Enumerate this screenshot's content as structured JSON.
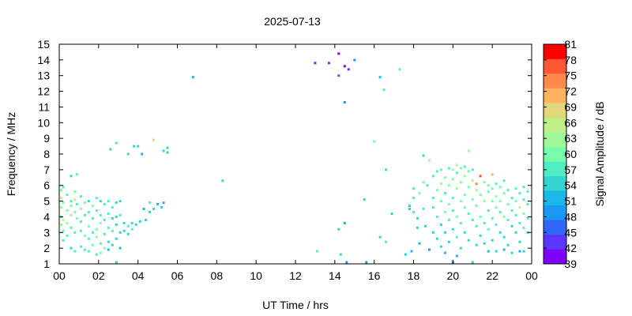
{
  "chart_data": {
    "type": "heatmap",
    "title": "2025-07-13",
    "xlabel": "UT Time / hrs",
    "ylabel": "Frequency / MHz",
    "xlim": [
      0,
      24
    ],
    "ylim": [
      1,
      15
    ],
    "x_tick_labels": [
      "00",
      "02",
      "04",
      "06",
      "08",
      "10",
      "12",
      "14",
      "16",
      "18",
      "20",
      "22",
      "00"
    ],
    "y_tick_labels": [
      "1",
      "2",
      "3",
      "4",
      "5",
      "6",
      "7",
      "8",
      "9",
      "10",
      "11",
      "12",
      "13",
      "14",
      "15"
    ],
    "grid": false,
    "colorbar": {
      "label": "Signal Amplitude / dB",
      "min": 39,
      "max": 81,
      "tick_labels": [
        "39",
        "42",
        "45",
        "48",
        "51",
        "54",
        "57",
        "60",
        "63",
        "66",
        "69",
        "72",
        "75",
        "78",
        "81"
      ],
      "colors": [
        "#8000ff",
        "#5a36fe",
        "#3265fa",
        "#1a96f3",
        "#1ab7e8",
        "#33d5d4",
        "#51edc5",
        "#78feaa",
        "#a0f898",
        "#c0ee89",
        "#e1d67a",
        "#ffb360",
        "#ff8a4a",
        "#ff5733",
        "#ff0000"
      ]
    },
    "points": [
      [
        0.1,
        5.7,
        60
      ],
      [
        0.1,
        5.2,
        65
      ],
      [
        0.1,
        4.6,
        62
      ],
      [
        0.1,
        4.0,
        58
      ],
      [
        0.1,
        3.5,
        63
      ],
      [
        0.2,
        5.9,
        57
      ],
      [
        0.2,
        4.9,
        61
      ],
      [
        0.2,
        3.8,
        66
      ],
      [
        0.2,
        3.1,
        59
      ],
      [
        0.2,
        2.5,
        56
      ],
      [
        0.4,
        5.4,
        58
      ],
      [
        0.4,
        4.4,
        60
      ],
      [
        0.4,
        3.6,
        62
      ],
      [
        0.4,
        2.8,
        57
      ],
      [
        0.6,
        6.6,
        55
      ],
      [
        0.6,
        5.0,
        56
      ],
      [
        0.6,
        4.7,
        61
      ],
      [
        0.6,
        4.1,
        64
      ],
      [
        0.6,
        3.3,
        57
      ],
      [
        0.6,
        2.0,
        55
      ],
      [
        0.8,
        5.6,
        59
      ],
      [
        0.8,
        5.1,
        66
      ],
      [
        0.8,
        4.3,
        61
      ],
      [
        0.8,
        3.0,
        58
      ],
      [
        0.8,
        1.8,
        57
      ],
      [
        0.9,
        6.7,
        56
      ],
      [
        0.9,
        4.8,
        57
      ],
      [
        0.9,
        3.9,
        60
      ],
      [
        1.1,
        5.3,
        58
      ],
      [
        1.1,
        4.5,
        62
      ],
      [
        1.1,
        3.7,
        56
      ],
      [
        1.1,
        3.1,
        58
      ],
      [
        1.1,
        2.1,
        57
      ],
      [
        1.3,
        4.9,
        60
      ],
      [
        1.3,
        4.1,
        57
      ],
      [
        1.3,
        2.8,
        59
      ],
      [
        1.3,
        1.9,
        56
      ],
      [
        1.5,
        5.0,
        55
      ],
      [
        1.5,
        4.3,
        58
      ],
      [
        1.5,
        3.4,
        60
      ],
      [
        1.5,
        2.6,
        57
      ],
      [
        1.5,
        1.8,
        58
      ],
      [
        1.7,
        4.7,
        62
      ],
      [
        1.7,
        3.9,
        57
      ],
      [
        1.7,
        3.0,
        58
      ],
      [
        1.7,
        2.2,
        60
      ],
      [
        1.9,
        5.2,
        56
      ],
      [
        1.9,
        4.4,
        58
      ],
      [
        1.9,
        3.2,
        59
      ],
      [
        1.9,
        2.7,
        64
      ],
      [
        1.9,
        1.6,
        57
      ],
      [
        2.1,
        5.0,
        55
      ],
      [
        2.1,
        4.1,
        57
      ],
      [
        2.1,
        3.6,
        59
      ],
      [
        2.1,
        2.3,
        58
      ],
      [
        2.1,
        1.7,
        60
      ],
      [
        2.3,
        4.8,
        56
      ],
      [
        2.3,
        3.8,
        58
      ],
      [
        2.3,
        2.9,
        57
      ],
      [
        2.3,
        2.0,
        59
      ],
      [
        2.5,
        5.0,
        56
      ],
      [
        2.5,
        4.2,
        58
      ],
      [
        2.5,
        3.3,
        56
      ],
      [
        2.5,
        2.4,
        55
      ],
      [
        2.5,
        1.9,
        52
      ],
      [
        2.6,
        8.3,
        55
      ],
      [
        2.7,
        4.6,
        57
      ],
      [
        2.7,
        3.9,
        55
      ],
      [
        2.7,
        3.1,
        57
      ],
      [
        2.7,
        2.2,
        54
      ],
      [
        2.9,
        8.7,
        57
      ],
      [
        2.9,
        4.9,
        55
      ],
      [
        2.9,
        4.0,
        55
      ],
      [
        2.9,
        3.5,
        55
      ],
      [
        2.9,
        2.6,
        53
      ],
      [
        2.9,
        1.1,
        54
      ],
      [
        3.1,
        5.0,
        54
      ],
      [
        3.1,
        4.1,
        56
      ],
      [
        3.1,
        3.0,
        53
      ],
      [
        3.1,
        2.0,
        52
      ],
      [
        3.3,
        3.6,
        55
      ],
      [
        3.3,
        3.1,
        54
      ],
      [
        3.5,
        3.4,
        56
      ],
      [
        3.5,
        2.9,
        54
      ],
      [
        3.5,
        8.0,
        53
      ],
      [
        3.7,
        3.6,
        55
      ],
      [
        3.7,
        3.2,
        57
      ],
      [
        3.8,
        8.5,
        54
      ],
      [
        3.9,
        3.5,
        55
      ],
      [
        4.0,
        8.5,
        53
      ],
      [
        4.1,
        3.7,
        55
      ],
      [
        4.2,
        8.0,
        52
      ],
      [
        4.3,
        4.5,
        51
      ],
      [
        4.4,
        3.8,
        55
      ],
      [
        4.6,
        4.9,
        56
      ],
      [
        4.6,
        4.3,
        53
      ],
      [
        4.8,
        4.5,
        55
      ],
      [
        4.8,
        8.9,
        68
      ],
      [
        5.0,
        4.8,
        52
      ],
      [
        5.2,
        4.6,
        53
      ],
      [
        5.3,
        8.2,
        54
      ],
      [
        5.5,
        8.4,
        55
      ],
      [
        5.5,
        8.1,
        53
      ],
      [
        5.3,
        4.9,
        52
      ],
      [
        6.8,
        12.9,
        52
      ],
      [
        8.3,
        6.3,
        54
      ],
      [
        13.0,
        13.8,
        42
      ],
      [
        13.1,
        1.8,
        57
      ],
      [
        13.7,
        13.8,
        43
      ],
      [
        14.2,
        14.4,
        40
      ],
      [
        14.2,
        3.2,
        53
      ],
      [
        14.2,
        13.0,
        47
      ],
      [
        14.3,
        1.6,
        54
      ],
      [
        14.5,
        13.6,
        41
      ],
      [
        14.5,
        11.3,
        50
      ],
      [
        14.5,
        3.6,
        52
      ],
      [
        14.6,
        1.1,
        50
      ],
      [
        14.7,
        13.4,
        44
      ],
      [
        15.0,
        14.0,
        48
      ],
      [
        15.5,
        5.1,
        54
      ],
      [
        15.6,
        1.1,
        50
      ],
      [
        16.0,
        8.8,
        61
      ],
      [
        16.3,
        12.9,
        52
      ],
      [
        16.3,
        2.7,
        55
      ],
      [
        16.5,
        12.1,
        57
      ],
      [
        16.6,
        7.0,
        55
      ],
      [
        16.6,
        2.4,
        57
      ],
      [
        16.9,
        4.2,
        53
      ],
      [
        17.3,
        13.4,
        58
      ],
      [
        17.6,
        1.6,
        53
      ],
      [
        17.9,
        1.8,
        52
      ],
      [
        17.8,
        4.7,
        54
      ],
      [
        17.8,
        4.5,
        55
      ],
      [
        18.0,
        5.8,
        56
      ],
      [
        18.0,
        5.2,
        58
      ],
      [
        18.0,
        4.3,
        57
      ],
      [
        18.2,
        3.9,
        55
      ],
      [
        18.2,
        3.3,
        53
      ],
      [
        18.3,
        5.5,
        59
      ],
      [
        18.3,
        2.3,
        52
      ],
      [
        18.5,
        6.2,
        60
      ],
      [
        18.5,
        4.5,
        57
      ],
      [
        18.5,
        7.9,
        53
      ],
      [
        18.6,
        3.4,
        54
      ],
      [
        18.7,
        6.0,
        58
      ],
      [
        18.8,
        7.6,
        64
      ],
      [
        18.8,
        1.9,
        50
      ],
      [
        19.0,
        6.6,
        56
      ],
      [
        19.0,
        5.2,
        57
      ],
      [
        19.0,
        4.6,
        56
      ],
      [
        19.0,
        3.0,
        53
      ],
      [
        19.2,
        6.9,
        58
      ],
      [
        19.2,
        5.7,
        59
      ],
      [
        19.2,
        4.0,
        58
      ],
      [
        19.2,
        2.6,
        54
      ],
      [
        19.4,
        7.0,
        59
      ],
      [
        19.4,
        6.1,
        62
      ],
      [
        19.4,
        5.0,
        61
      ],
      [
        19.4,
        3.5,
        55
      ],
      [
        19.4,
        2.1,
        53
      ],
      [
        19.6,
        6.5,
        60
      ],
      [
        19.6,
        5.5,
        58
      ],
      [
        19.6,
        4.3,
        60
      ],
      [
        19.6,
        3.0,
        54
      ],
      [
        19.6,
        1.7,
        52
      ],
      [
        19.8,
        7.1,
        58
      ],
      [
        19.8,
        6.0,
        61
      ],
      [
        19.8,
        4.8,
        59
      ],
      [
        19.8,
        3.8,
        56
      ],
      [
        19.8,
        2.4,
        53
      ],
      [
        20.0,
        7.0,
        62
      ],
      [
        20.0,
        6.4,
        60
      ],
      [
        20.0,
        5.2,
        57
      ],
      [
        20.0,
        4.4,
        58
      ],
      [
        20.0,
        3.2,
        54
      ],
      [
        20.0,
        1.1,
        50
      ],
      [
        20.2,
        7.3,
        63
      ],
      [
        20.2,
        6.8,
        58
      ],
      [
        20.2,
        5.8,
        62
      ],
      [
        20.2,
        4.0,
        60
      ],
      [
        20.2,
        2.7,
        56
      ],
      [
        20.2,
        1.5,
        52
      ],
      [
        20.4,
        7.1,
        60
      ],
      [
        20.4,
        6.2,
        59
      ],
      [
        20.4,
        5.0,
        61
      ],
      [
        20.4,
        3.6,
        57
      ],
      [
        20.4,
        2.0,
        53
      ],
      [
        20.6,
        7.2,
        57
      ],
      [
        20.6,
        6.6,
        63
      ],
      [
        20.6,
        5.4,
        60
      ],
      [
        20.6,
        4.6,
        59
      ],
      [
        20.6,
        3.0,
        55
      ],
      [
        20.8,
        8.2,
        62
      ],
      [
        20.8,
        6.9,
        59
      ],
      [
        20.8,
        5.9,
        61
      ],
      [
        20.8,
        4.2,
        58
      ],
      [
        20.8,
        2.5,
        55
      ],
      [
        21.0,
        7.0,
        58
      ],
      [
        21.0,
        6.3,
        66
      ],
      [
        21.0,
        5.1,
        60
      ],
      [
        21.0,
        3.8,
        57
      ],
      [
        21.0,
        1.1,
        53
      ],
      [
        21.2,
        6.1,
        75
      ],
      [
        21.2,
        5.7,
        62
      ],
      [
        21.2,
        4.7,
        59
      ],
      [
        21.2,
        3.4,
        56
      ],
      [
        21.2,
        2.2,
        54
      ],
      [
        21.4,
        6.6,
        78
      ],
      [
        21.4,
        5.4,
        61
      ],
      [
        21.4,
        4.0,
        60
      ],
      [
        21.4,
        2.8,
        55
      ],
      [
        21.6,
        6.2,
        60
      ],
      [
        21.6,
        5.0,
        63
      ],
      [
        21.6,
        3.6,
        57
      ],
      [
        21.6,
        2.3,
        54
      ],
      [
        21.8,
        6.0,
        59
      ],
      [
        21.8,
        5.6,
        61
      ],
      [
        21.8,
        4.4,
        58
      ],
      [
        21.8,
        3.2,
        56
      ],
      [
        21.8,
        1.8,
        52
      ],
      [
        22.0,
        6.7,
        71
      ],
      [
        22.0,
        5.8,
        60
      ],
      [
        22.0,
        5.0,
        59
      ],
      [
        22.0,
        3.9,
        57
      ],
      [
        22.0,
        2.5,
        55
      ],
      [
        22.2,
        6.1,
        58
      ],
      [
        22.2,
        5.3,
        62
      ],
      [
        22.2,
        4.6,
        60
      ],
      [
        22.2,
        3.5,
        56
      ],
      [
        22.2,
        1.8,
        53
      ],
      [
        22.4,
        5.9,
        59
      ],
      [
        22.4,
        5.0,
        61
      ],
      [
        22.4,
        4.3,
        58
      ],
      [
        22.4,
        3.0,
        55
      ],
      [
        22.6,
        6.3,
        56
      ],
      [
        22.6,
        5.5,
        60
      ],
      [
        22.6,
        4.0,
        63
      ],
      [
        22.6,
        2.7,
        54
      ],
      [
        22.6,
        1.9,
        52
      ],
      [
        22.8,
        5.7,
        58
      ],
      [
        22.8,
        4.8,
        60
      ],
      [
        22.8,
        3.8,
        57
      ],
      [
        22.8,
        2.2,
        54
      ],
      [
        23.0,
        5.2,
        57
      ],
      [
        23.0,
        4.4,
        56
      ],
      [
        23.0,
        3.4,
        55
      ],
      [
        23.0,
        1.7,
        53
      ],
      [
        23.2,
        5.8,
        58
      ],
      [
        23.2,
        5.0,
        59
      ],
      [
        23.2,
        4.1,
        57
      ],
      [
        23.2,
        3.0,
        55
      ],
      [
        23.4,
        5.5,
        56
      ],
      [
        23.4,
        4.6,
        66
      ],
      [
        23.4,
        3.6,
        57
      ],
      [
        23.4,
        2.4,
        54
      ],
      [
        23.4,
        1.8,
        52
      ],
      [
        23.6,
        5.9,
        57
      ],
      [
        23.6,
        5.1,
        58
      ],
      [
        23.6,
        4.2,
        60
      ],
      [
        23.6,
        3.3,
        56
      ],
      [
        23.6,
        1.8,
        53
      ],
      [
        23.8,
        5.6,
        56
      ],
      [
        23.8,
        4.8,
        58
      ],
      [
        23.8,
        3.9,
        57
      ],
      [
        23.8,
        3.0,
        55
      ]
    ]
  }
}
